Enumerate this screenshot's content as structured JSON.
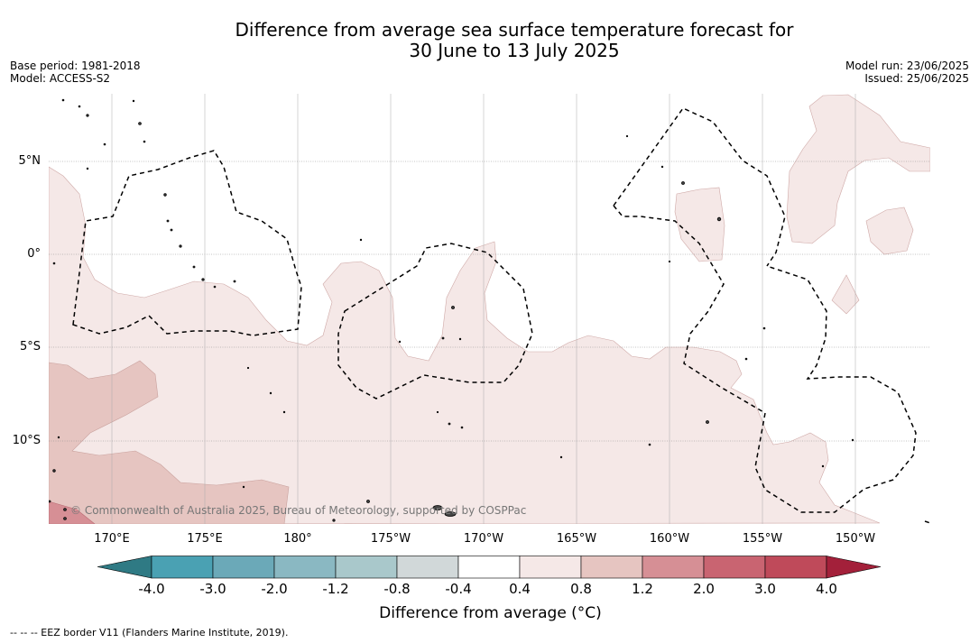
{
  "title_line1": "Difference from average sea surface temperature forecast for",
  "title_line2": "30 June to 13 July 2025",
  "meta": {
    "base_period": "Base period: 1981-2018",
    "model": "Model: ACCESS-S2",
    "model_run": "Model run: 23/06/2025",
    "issued": "Issued: 25/06/2025"
  },
  "map": {
    "latitude_labels": [
      "5°N",
      "0°",
      "5°S",
      "10°S"
    ],
    "longitude_labels": [
      "170°E",
      "175°E",
      "180°",
      "175°W",
      "170°W",
      "165°W",
      "160°W",
      "155°W",
      "150°W"
    ],
    "copyright": "© Commonwealth of Australia 2025, Bureau of Meteorology, supported by COSPPac",
    "anomaly_classes": {
      "0.4-0.8": "#f5e8e7",
      "0.8-1.2": "#e6c5c1",
      "1.2-2.0": "#d68f95"
    },
    "eez_border_style": "dashed"
  },
  "colorbar": {
    "ticks": [
      "-4.0",
      "-3.0",
      "-2.0",
      "-1.2",
      "-0.8",
      "-0.4",
      "0.4",
      "0.8",
      "1.2",
      "2.0",
      "3.0",
      "4.0"
    ],
    "colors": {
      "below_min": "#2f7a84",
      "bins": [
        "#4aa1b3",
        "#6ba9b8",
        "#8ab8c2",
        "#a9c8cb",
        "#d1d8d9",
        "#ffffff",
        "#f5e8e7",
        "#e6c5c1",
        "#d68f95",
        "#c96471",
        "#bf4a5a"
      ],
      "above_max": "#a3203a"
    },
    "label": "Difference from average (°C)"
  },
  "eez_note": "--  --  -- EEZ border V11 (Flanders Marine Institute, 2019)."
}
